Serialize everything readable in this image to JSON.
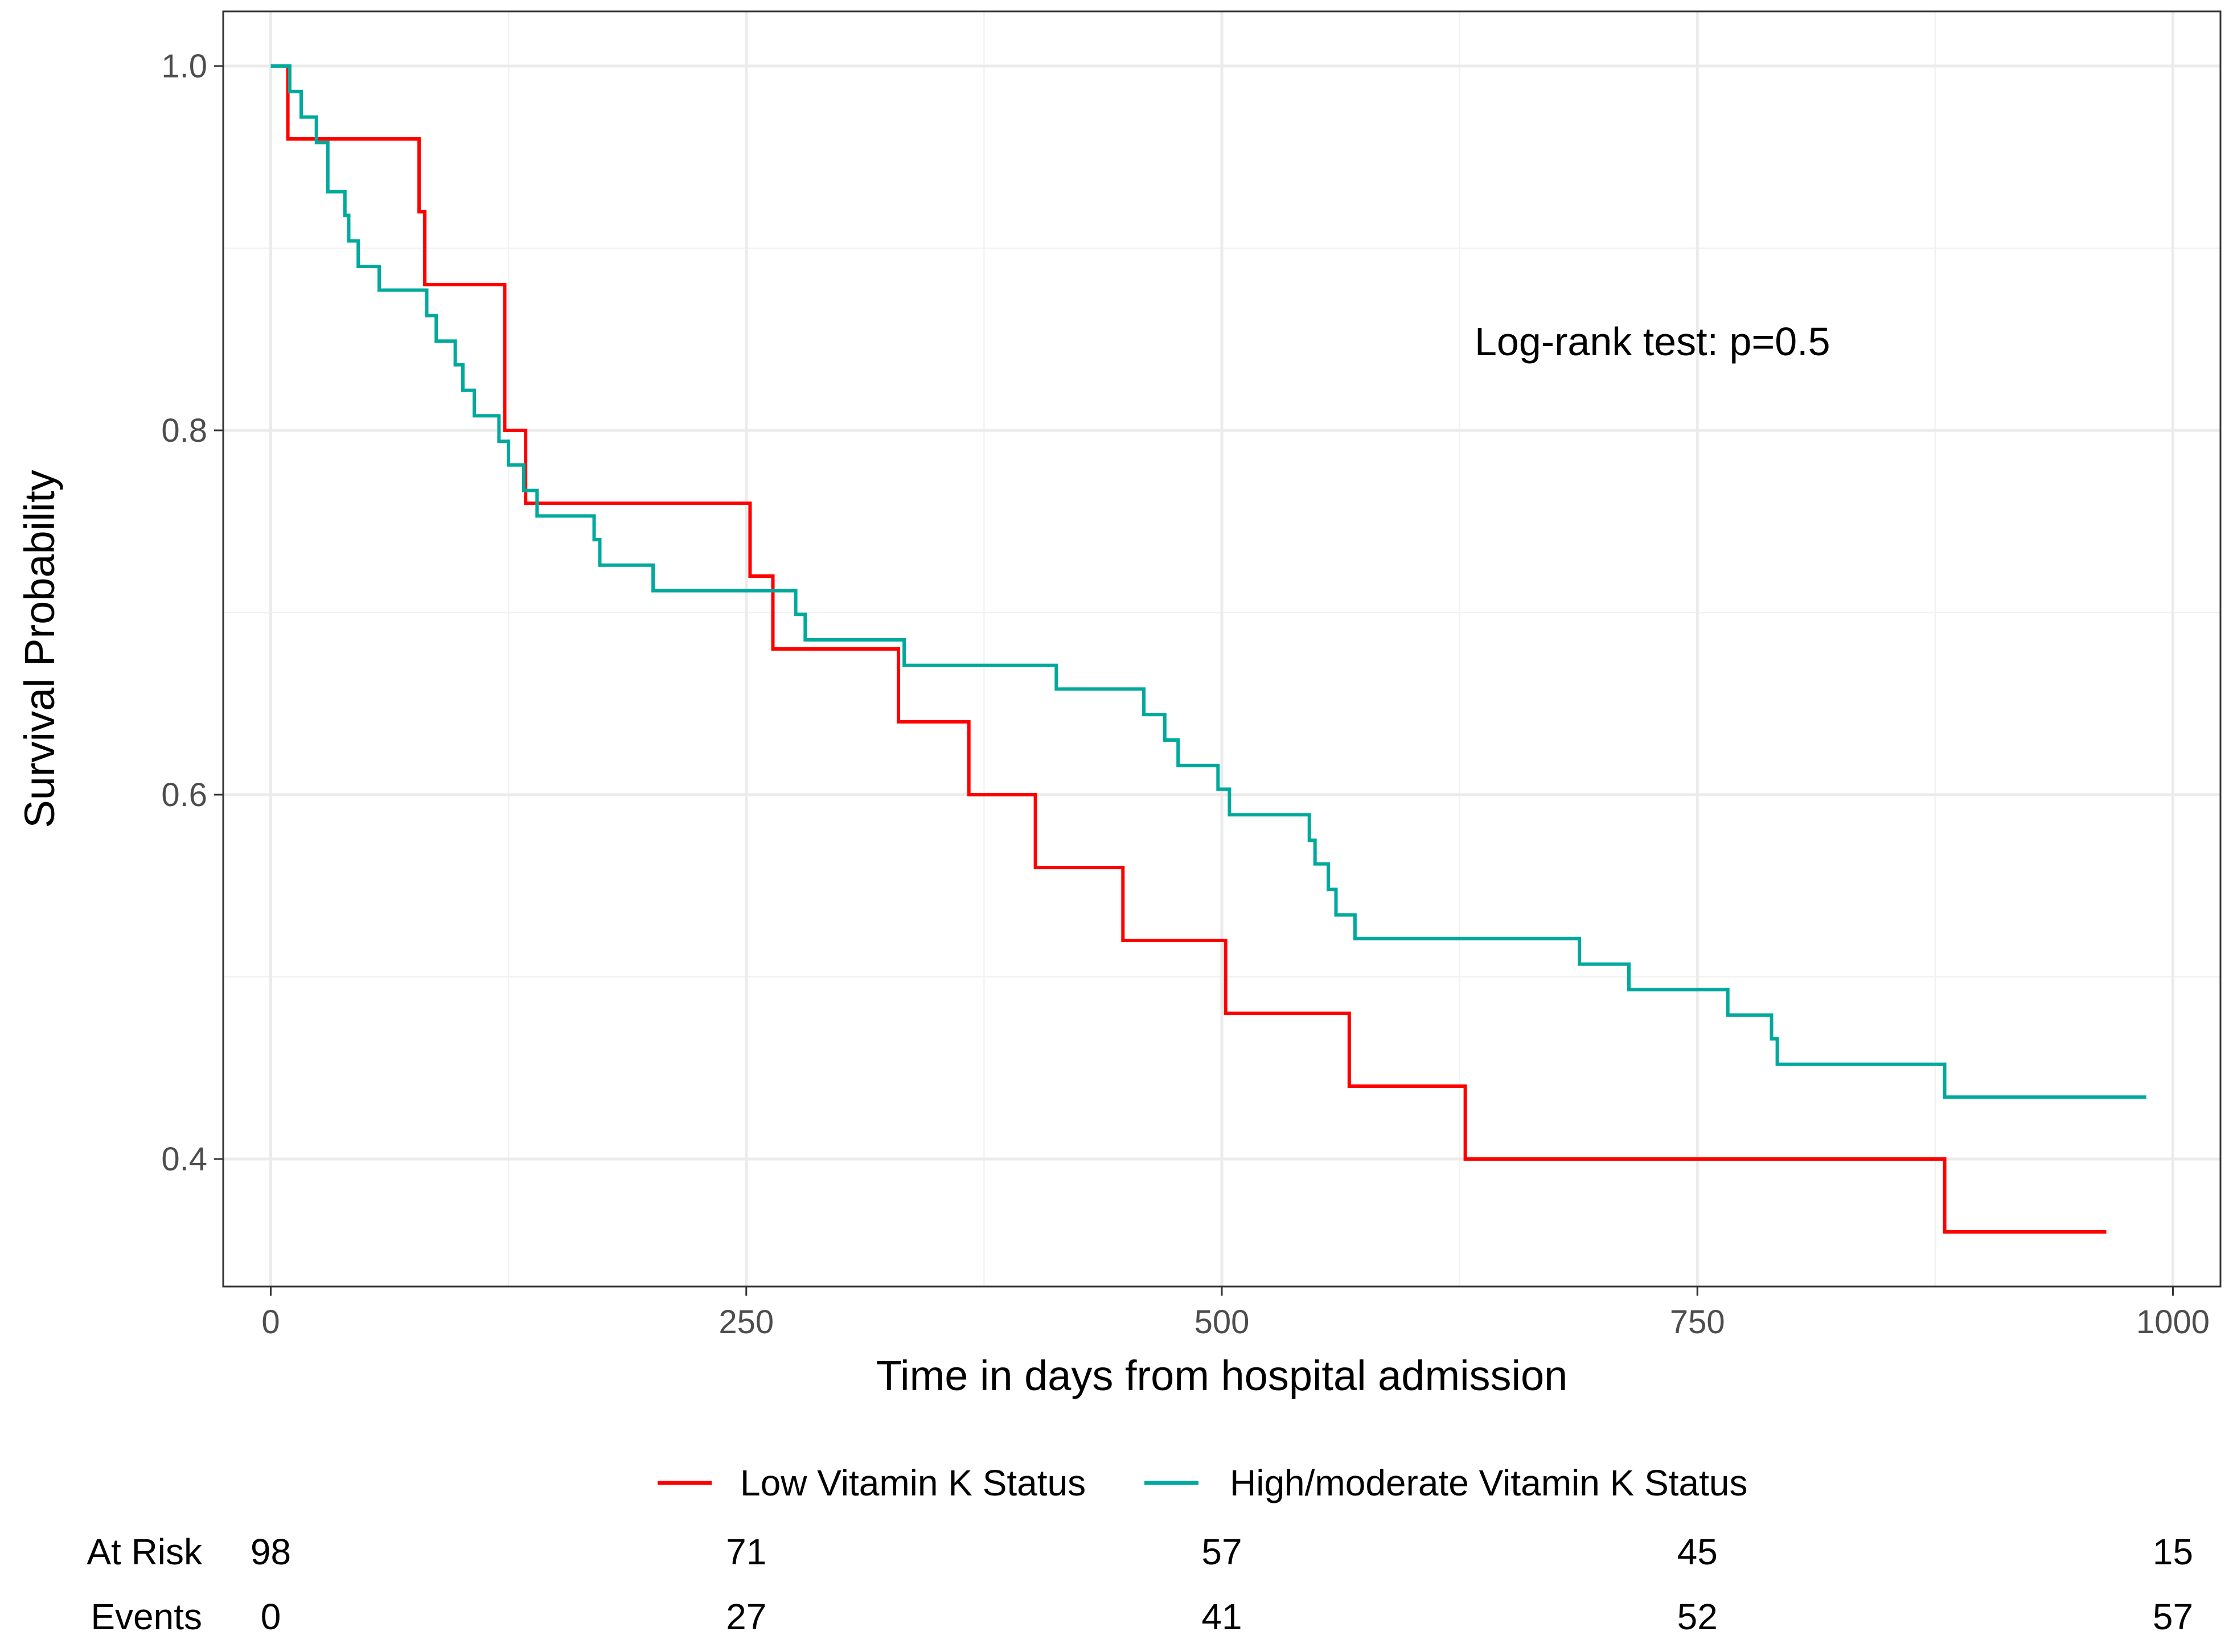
{
  "chart_data": {
    "type": "line",
    "subtype": "kaplan-meier",
    "title": "",
    "xlabel": "Time in days from hospital admission",
    "ylabel": "Survival Probability",
    "xlim": [
      -25,
      1025
    ],
    "ylim": [
      0.33,
      1.03
    ],
    "x_ticks": [
      0,
      250,
      500,
      750,
      1000
    ],
    "x_tick_labels": [
      "0",
      "250",
      "500",
      "750",
      "1000"
    ],
    "y_ticks": [
      0.4,
      0.6,
      0.8,
      1.0
    ],
    "y_tick_labels": [
      "0.4",
      "0.6",
      "0.8",
      "1.0"
    ],
    "grid": true,
    "legend_position": "bottom",
    "annotation": "Log-rank test: p=0.5",
    "series": [
      {
        "name": "Low Vitamin K Status",
        "color": "#ff0000",
        "points": [
          [
            0,
            1.0
          ],
          [
            9,
            0.96
          ],
          [
            78,
            0.92
          ],
          [
            81,
            0.88
          ],
          [
            123,
            0.8
          ],
          [
            134,
            0.76
          ],
          [
            252,
            0.72
          ],
          [
            264,
            0.68
          ],
          [
            330,
            0.64
          ],
          [
            367,
            0.6
          ],
          [
            402,
            0.56
          ],
          [
            448,
            0.52
          ],
          [
            502,
            0.48
          ],
          [
            567,
            0.44
          ],
          [
            628,
            0.4
          ],
          [
            880,
            0.36
          ],
          [
            965,
            0.36
          ]
        ]
      },
      {
        "name": "High/moderate Vitamin K Status",
        "color": "#00a99d",
        "points": [
          [
            0,
            1.0
          ],
          [
            10,
            0.986
          ],
          [
            16,
            0.972
          ],
          [
            24,
            0.958
          ],
          [
            30,
            0.931
          ],
          [
            39,
            0.918
          ],
          [
            41,
            0.904
          ],
          [
            46,
            0.89
          ],
          [
            57,
            0.877
          ],
          [
            82,
            0.863
          ],
          [
            87,
            0.849
          ],
          [
            97,
            0.836
          ],
          [
            101,
            0.822
          ],
          [
            107,
            0.808
          ],
          [
            120,
            0.794
          ],
          [
            125,
            0.781
          ],
          [
            133,
            0.767
          ],
          [
            140,
            0.753
          ],
          [
            170,
            0.74
          ],
          [
            173,
            0.726
          ],
          [
            201,
            0.712
          ],
          [
            276,
            0.699
          ],
          [
            281,
            0.685
          ],
          [
            333,
            0.671
          ],
          [
            413,
            0.658
          ],
          [
            459,
            0.644
          ],
          [
            470,
            0.63
          ],
          [
            477,
            0.616
          ],
          [
            498,
            0.603
          ],
          [
            504,
            0.589
          ],
          [
            546,
            0.575
          ],
          [
            549,
            0.562
          ],
          [
            556,
            0.548
          ],
          [
            560,
            0.534
          ],
          [
            570,
            0.521
          ],
          [
            688,
            0.507
          ],
          [
            714,
            0.493
          ],
          [
            766,
            0.479
          ],
          [
            789,
            0.466
          ],
          [
            792,
            0.452
          ],
          [
            880,
            0.434
          ],
          [
            986,
            0.434
          ]
        ]
      }
    ],
    "risk_table": {
      "times": [
        0,
        250,
        500,
        750,
        1000
      ],
      "rows": [
        {
          "label": "At Risk",
          "values": [
            "98",
            "71",
            "57",
            "45",
            "15"
          ]
        },
        {
          "label": "Events",
          "values": [
            "0",
            "27",
            "41",
            "52",
            "57"
          ]
        }
      ]
    }
  }
}
